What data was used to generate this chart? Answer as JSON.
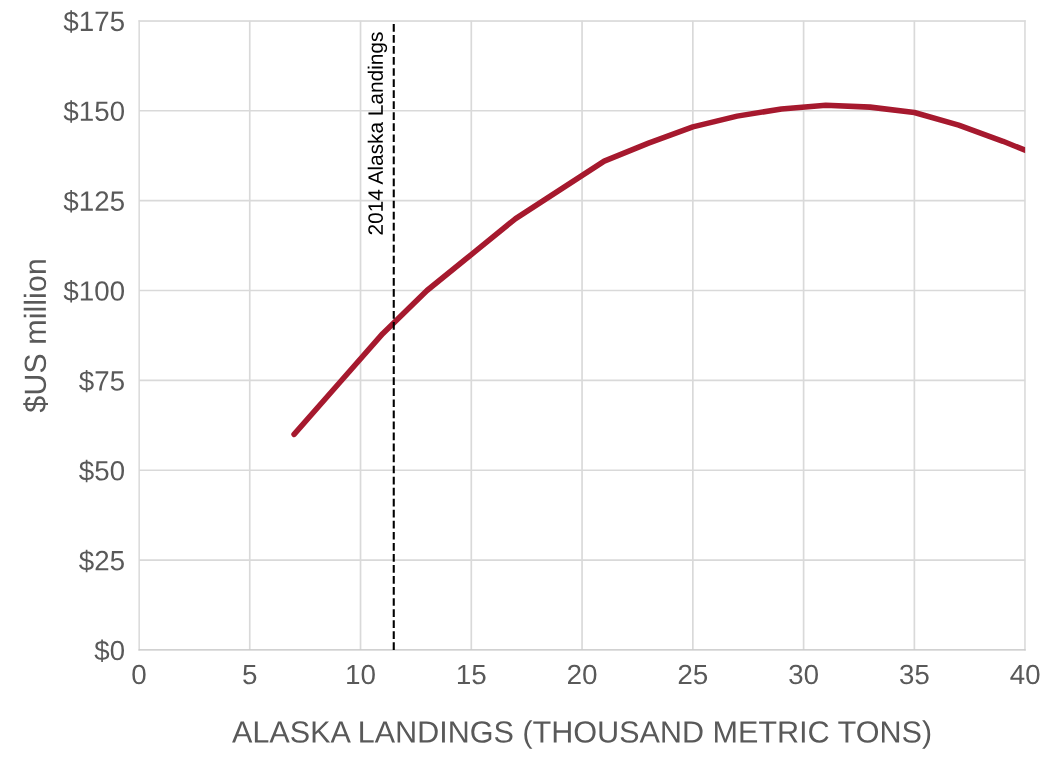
{
  "chart_data": {
    "type": "line",
    "xlabel": "ALASKA LANDINGS (THOUSAND METRIC TONS)",
    "ylabel": "$US million",
    "series": [
      {
        "color": "#a6192e",
        "x": [
          7,
          9,
          11,
          13,
          15,
          17,
          19,
          21,
          23,
          25,
          27,
          29,
          31,
          33,
          35,
          37,
          39,
          40
        ],
        "values": [
          60,
          74,
          88,
          100,
          110,
          120,
          128,
          136,
          141,
          145.5,
          148.5,
          150.5,
          151.5,
          151,
          149.5,
          146,
          141.5,
          139
        ]
      }
    ],
    "xlim": [
      0,
      40
    ],
    "xticks": [
      0,
      5,
      10,
      15,
      20,
      25,
      30,
      35,
      40
    ],
    "ylim": [
      0,
      175
    ],
    "yticks": [
      {
        "value": 0,
        "label": "$0"
      },
      {
        "value": 25,
        "label": "$25"
      },
      {
        "value": 50,
        "label": "$50"
      },
      {
        "value": 75,
        "label": "$75"
      },
      {
        "value": 100,
        "label": "$100"
      },
      {
        "value": 125,
        "label": "$125"
      },
      {
        "value": 150,
        "label": "$150"
      },
      {
        "value": 175,
        "label": "$175"
      }
    ],
    "ref_lines": [
      {
        "axis": "x",
        "value": 11.5,
        "label": "2014 Alaska Landings",
        "color": "#000000",
        "line_style": "dashed"
      }
    ],
    "grid": true,
    "marker": "none",
    "line_style": "solid"
  }
}
